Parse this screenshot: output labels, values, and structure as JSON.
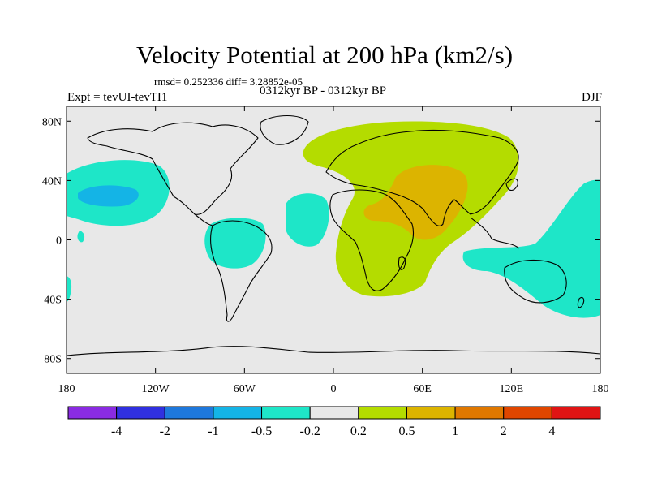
{
  "title": "Velocity Potential at 200 hPa (km2/s)",
  "stats": "rmsd= 0.252336 diff= 3.28852e-05",
  "expt": "Expt = tevUI-tevTI1",
  "period": "0312kyr BP - 0312kyr BP",
  "season": "DJF",
  "map": {
    "lon_range": [
      -180,
      180
    ],
    "lat_range": [
      -90,
      90
    ],
    "x_ticks": [
      {
        "lon": -180,
        "label": "180"
      },
      {
        "lon": -120,
        "label": "120W"
      },
      {
        "lon": -60,
        "label": "60W"
      },
      {
        "lon": 0,
        "label": "0"
      },
      {
        "lon": 60,
        "label": "60E"
      },
      {
        "lon": 120,
        "label": "120E"
      },
      {
        "lon": 180,
        "label": "180"
      }
    ],
    "y_ticks": [
      {
        "lat": 80,
        "label": "80N"
      },
      {
        "lat": 40,
        "label": "40N"
      },
      {
        "lat": 0,
        "label": "0"
      },
      {
        "lat": -40,
        "label": "40S"
      },
      {
        "lat": -80,
        "label": "80S"
      }
    ],
    "background_color": "#e8e8e8"
  },
  "colorbar": {
    "colors": [
      "#8a2be2",
      "#3030e0",
      "#1e78dc",
      "#14b4e6",
      "#1ee6c8",
      "#e8e8e8",
      "#b4dc00",
      "#dcb400",
      "#e07800",
      "#e04600",
      "#e01414"
    ],
    "labels": [
      "-4",
      "-2",
      "-1",
      "-0.5",
      "-0.2",
      "0.2",
      "0.5",
      "1",
      "2",
      "4"
    ]
  },
  "field_colors": {
    "negative_weak": "#1ee6c8",
    "negative_mid": "#14b4e6",
    "positive_weak": "#b4dc00",
    "positive_mid": "#dcb400"
  }
}
